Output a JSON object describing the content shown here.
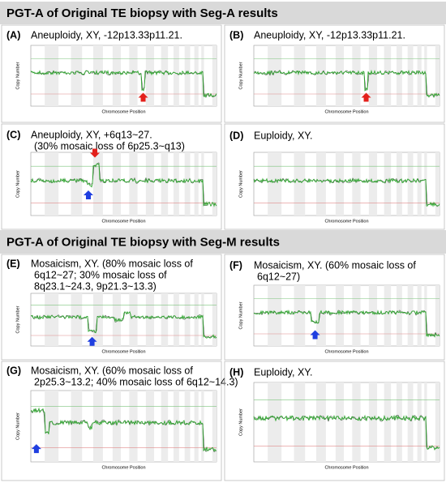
{
  "sections": [
    {
      "title": "PGT-A of Original TE biopsy with Seg-A results",
      "panels": [
        {
          "label": "(A)",
          "caption": [
            "Aneuploidy, XY, -12p13.33p11.21."
          ]
        },
        {
          "label": "(B)",
          "caption": [
            "Aneuploidy, XY, -12p13.33p11.21."
          ]
        },
        {
          "label": "(C)",
          "caption": [
            "Aneuploidy, XY, +6q13~27.",
            "(30% mosaic loss of 6p25.3~q13)"
          ]
        },
        {
          "label": "(D)",
          "caption": [
            "Euploidy, XY."
          ]
        }
      ]
    },
    {
      "title": "PGT-A of Original TE biopsy with Seg-M results",
      "panels": [
        {
          "label": "(E)",
          "caption": [
            "Mosaicism, XY. (80% mosaic loss of",
            "6q12~27; 30% mosaic loss of",
            "8q23.1~24.3, 9p21.3~13.3)"
          ]
        },
        {
          "label": "(F)",
          "caption": [
            "Mosaicism, XY. (60% mosaic loss of",
            "6q12~27)"
          ]
        },
        {
          "label": "(G)",
          "caption": [
            "Mosaicism, XY. (60% mosaic loss of",
            "2p25.3~13.2; 40% mosaic loss of 6q12~14.3)"
          ]
        },
        {
          "label": "(H)",
          "caption": [
            "Euploidy, XY."
          ]
        }
      ]
    }
  ],
  "axis": {
    "x_label": "Chromosome Position",
    "y_label": "Copy Number"
  }
}
